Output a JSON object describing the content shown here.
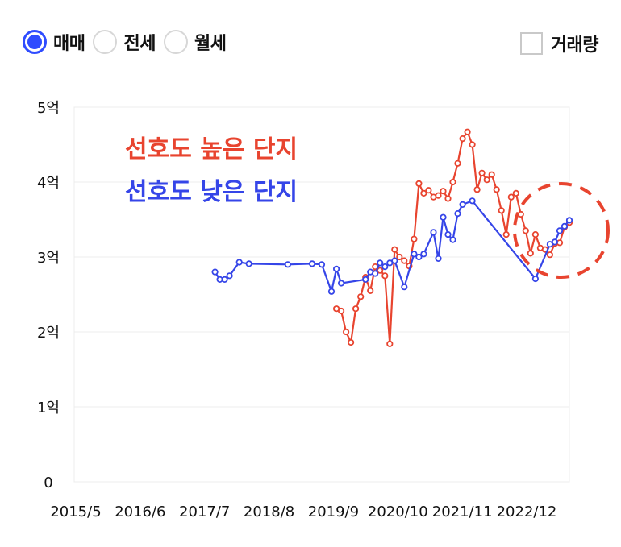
{
  "controls": {
    "radios": [
      {
        "label": "매매",
        "selected": true
      },
      {
        "label": "전세",
        "selected": false
      },
      {
        "label": "월세",
        "selected": false
      }
    ],
    "volume_checkbox": {
      "label": "거래량",
      "checked": false
    }
  },
  "colors": {
    "high": "#e8442f",
    "low": "#3545e8",
    "accent": "#2f4cff",
    "circle": "#e8442f"
  },
  "chart_data": {
    "type": "line",
    "title": "",
    "xlabel": "",
    "ylabel": "",
    "x_tick_labels": [
      "2015/5",
      "2016/6",
      "2017/7",
      "2018/8",
      "2019/9",
      "2020/10",
      "2021/11",
      "2022/12"
    ],
    "y_tick_labels": [
      "0",
      "1억",
      "2억",
      "3억",
      "4억",
      "5억"
    ],
    "ylim": [
      0,
      5
    ],
    "xlim": [
      "2015-03",
      "2023-09"
    ],
    "grid": true,
    "annotations": [
      {
        "text": "선호도 높은 단지",
        "color": "#e8442f"
      },
      {
        "text": "선호도 낮은 단지",
        "color": "#3545e8"
      }
    ],
    "highlight": "dashed red circle around recent data",
    "series": [
      {
        "name": "선호도 높은 단지",
        "color": "#e8442f",
        "points": [
          [
            "2019-09",
            2.31
          ],
          [
            "2019-10",
            2.28
          ],
          [
            "2019-11",
            2.0
          ],
          [
            "2019-12",
            1.86
          ],
          [
            "2020-01",
            2.31
          ],
          [
            "2020-02",
            2.47
          ],
          [
            "2020-03",
            2.73
          ],
          [
            "2020-04",
            2.55
          ],
          [
            "2020-05",
            2.87
          ],
          [
            "2020-06",
            2.82
          ],
          [
            "2020-07",
            2.75
          ],
          [
            "2020-08",
            1.84
          ],
          [
            "2020-09",
            3.1
          ],
          [
            "2020-10",
            3.0
          ],
          [
            "2020-11",
            2.95
          ],
          [
            "2020-12",
            2.88
          ],
          [
            "2021-01",
            3.24
          ],
          [
            "2021-02",
            3.98
          ],
          [
            "2021-03",
            3.85
          ],
          [
            "2021-04",
            3.89
          ],
          [
            "2021-05",
            3.8
          ],
          [
            "2021-06",
            3.82
          ],
          [
            "2021-07",
            3.88
          ],
          [
            "2021-08",
            3.78
          ],
          [
            "2021-09",
            4.0
          ],
          [
            "2021-10",
            4.25
          ],
          [
            "2021-11",
            4.58
          ],
          [
            "2021-12",
            4.67
          ],
          [
            "2022-01",
            4.5
          ],
          [
            "2022-02",
            3.9
          ],
          [
            "2022-03",
            4.12
          ],
          [
            "2022-04",
            4.03
          ],
          [
            "2022-05",
            4.1
          ],
          [
            "2022-06",
            3.9
          ],
          [
            "2022-07",
            3.62
          ],
          [
            "2022-08",
            3.3
          ],
          [
            "2022-09",
            3.8
          ],
          [
            "2022-10",
            3.85
          ],
          [
            "2022-11",
            3.57
          ],
          [
            "2022-12",
            3.35
          ],
          [
            "2023-01",
            3.05
          ],
          [
            "2023-02",
            3.3
          ],
          [
            "2023-03",
            3.12
          ],
          [
            "2023-04",
            3.1
          ],
          [
            "2023-05",
            3.03
          ],
          [
            "2023-06",
            3.18
          ],
          [
            "2023-07",
            3.19
          ],
          [
            "2023-08",
            3.4
          ],
          [
            "2023-09",
            3.46
          ]
        ]
      },
      {
        "name": "선호도 낮은 단지",
        "color": "#3545e8",
        "points": [
          [
            "2017-08",
            2.8
          ],
          [
            "2017-09",
            2.7
          ],
          [
            "2017-10",
            2.7
          ],
          [
            "2017-11",
            2.75
          ],
          [
            "2018-01",
            2.93
          ],
          [
            "2018-03",
            2.91
          ],
          [
            "2018-11",
            2.9
          ],
          [
            "2019-04",
            2.91
          ],
          [
            "2019-06",
            2.9
          ],
          [
            "2019-08",
            2.54
          ],
          [
            "2019-09",
            2.84
          ],
          [
            "2019-10",
            2.65
          ],
          [
            "2020-03",
            2.7
          ],
          [
            "2020-04",
            2.8
          ],
          [
            "2020-05",
            2.78
          ],
          [
            "2020-06",
            2.92
          ],
          [
            "2020-07",
            2.87
          ],
          [
            "2020-08",
            2.92
          ],
          [
            "2020-09",
            2.95
          ],
          [
            "2020-11",
            2.6
          ],
          [
            "2021-01",
            3.04
          ],
          [
            "2021-02",
            3.0
          ],
          [
            "2021-03",
            3.04
          ],
          [
            "2021-05",
            3.33
          ],
          [
            "2021-06",
            2.98
          ],
          [
            "2021-07",
            3.53
          ],
          [
            "2021-08",
            3.3
          ],
          [
            "2021-09",
            3.23
          ],
          [
            "2021-10",
            3.58
          ],
          [
            "2021-11",
            3.7
          ],
          [
            "2022-01",
            3.75
          ],
          [
            "2023-02",
            2.71
          ],
          [
            "2023-05",
            3.17
          ],
          [
            "2023-06",
            3.2
          ],
          [
            "2023-07",
            3.35
          ],
          [
            "2023-08",
            3.41
          ],
          [
            "2023-09",
            3.49
          ]
        ]
      }
    ]
  }
}
